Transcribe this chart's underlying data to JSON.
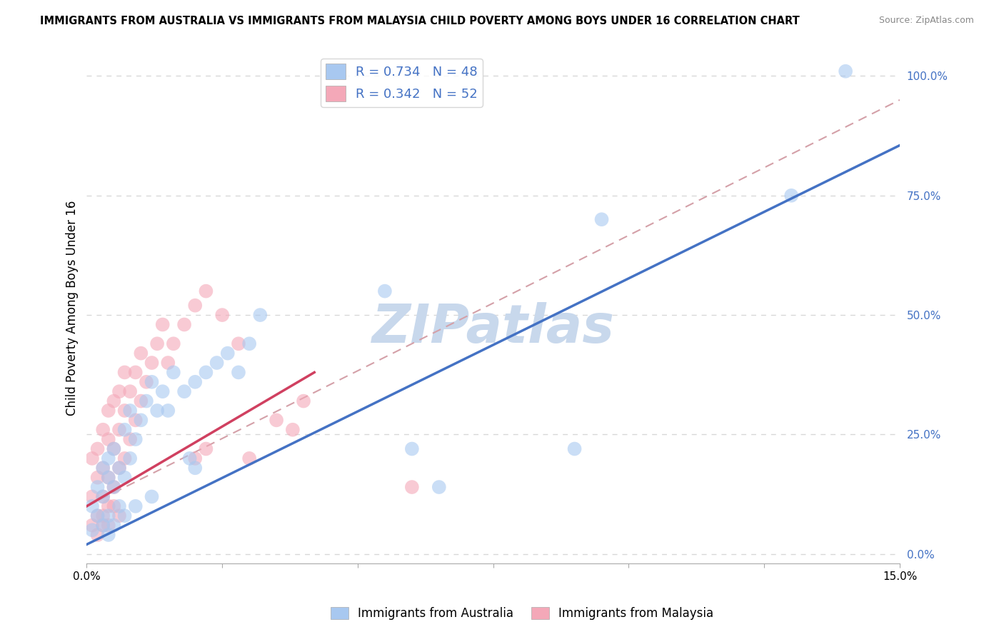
{
  "title": "IMMIGRANTS FROM AUSTRALIA VS IMMIGRANTS FROM MALAYSIA CHILD POVERTY AMONG BOYS UNDER 16 CORRELATION CHART",
  "source": "Source: ZipAtlas.com",
  "ylabel": "Child Poverty Among Boys Under 16",
  "xlim": [
    0.0,
    0.15
  ],
  "ylim": [
    -0.02,
    1.05
  ],
  "ytick_values": [
    0.0,
    0.25,
    0.5,
    0.75,
    1.0
  ],
  "ytick_labels": [
    "0.0%",
    "25.0%",
    "50.0%",
    "75.0%",
    "100.0%"
  ],
  "xtick_values": [
    0.0,
    0.025,
    0.05,
    0.075,
    0.1,
    0.125,
    0.15
  ],
  "xtick_labels": [
    "0.0%",
    "",
    "",
    "",
    "",
    "",
    "15.0%"
  ],
  "australia_R": 0.734,
  "australia_N": 48,
  "malaysia_R": 0.342,
  "malaysia_N": 52,
  "australia_color": "#a8c8f0",
  "malaysia_color": "#f4a8b8",
  "australia_line_color": "#4472c4",
  "malaysia_line_color": "#d04060",
  "ref_line_color": "#d4a0a8",
  "background_color": "#ffffff",
  "grid_color": "#d8d8d8",
  "tick_color": "#4472c4",
  "watermark_color": "#c8d8ec",
  "legend_label_australia": "Immigrants from Australia",
  "legend_label_malaysia": "Immigrants from Malaysia",
  "aus_line_x0": 0.0,
  "aus_line_y0": 0.02,
  "aus_line_x1": 0.15,
  "aus_line_y1": 0.855,
  "mal_line_x0": 0.0,
  "mal_line_y0": 0.1,
  "mal_line_x1": 0.042,
  "mal_line_y1": 0.38,
  "ref_line_x0": 0.0,
  "ref_line_y0": 0.1,
  "ref_line_x1": 0.15,
  "ref_line_y1": 0.95,
  "australia_x": [
    0.001,
    0.001,
    0.002,
    0.002,
    0.003,
    0.003,
    0.004,
    0.004,
    0.004,
    0.005,
    0.005,
    0.006,
    0.006,
    0.007,
    0.007,
    0.008,
    0.008,
    0.009,
    0.01,
    0.011,
    0.012,
    0.013,
    0.014,
    0.015,
    0.016,
    0.018,
    0.019,
    0.02,
    0.022,
    0.024,
    0.026,
    0.028,
    0.03,
    0.032,
    0.055,
    0.06,
    0.065,
    0.09,
    0.095,
    0.13,
    0.14,
    0.003,
    0.004,
    0.005,
    0.007,
    0.009,
    0.012,
    0.02
  ],
  "australia_y": [
    0.05,
    0.1,
    0.08,
    0.14,
    0.12,
    0.18,
    0.08,
    0.16,
    0.2,
    0.14,
    0.22,
    0.1,
    0.18,
    0.16,
    0.26,
    0.2,
    0.3,
    0.24,
    0.28,
    0.32,
    0.36,
    0.3,
    0.34,
    0.3,
    0.38,
    0.34,
    0.2,
    0.36,
    0.38,
    0.4,
    0.42,
    0.38,
    0.44,
    0.5,
    0.55,
    0.22,
    0.14,
    0.22,
    0.7,
    0.75,
    1.01,
    0.06,
    0.04,
    0.06,
    0.08,
    0.1,
    0.12,
    0.18
  ],
  "malaysia_x": [
    0.001,
    0.001,
    0.001,
    0.002,
    0.002,
    0.002,
    0.003,
    0.003,
    0.003,
    0.003,
    0.004,
    0.004,
    0.004,
    0.004,
    0.005,
    0.005,
    0.005,
    0.006,
    0.006,
    0.006,
    0.007,
    0.007,
    0.007,
    0.008,
    0.008,
    0.009,
    0.009,
    0.01,
    0.01,
    0.011,
    0.012,
    0.013,
    0.014,
    0.015,
    0.016,
    0.018,
    0.02,
    0.022,
    0.025,
    0.028,
    0.03,
    0.035,
    0.038,
    0.04,
    0.002,
    0.003,
    0.004,
    0.005,
    0.006,
    0.02,
    0.022,
    0.06
  ],
  "malaysia_y": [
    0.06,
    0.12,
    0.2,
    0.08,
    0.16,
    0.22,
    0.06,
    0.12,
    0.18,
    0.26,
    0.1,
    0.16,
    0.24,
    0.3,
    0.14,
    0.22,
    0.32,
    0.18,
    0.26,
    0.34,
    0.2,
    0.3,
    0.38,
    0.24,
    0.34,
    0.28,
    0.38,
    0.32,
    0.42,
    0.36,
    0.4,
    0.44,
    0.48,
    0.4,
    0.44,
    0.48,
    0.52,
    0.55,
    0.5,
    0.44,
    0.2,
    0.28,
    0.26,
    0.32,
    0.04,
    0.08,
    0.06,
    0.1,
    0.08,
    0.2,
    0.22,
    0.14
  ]
}
